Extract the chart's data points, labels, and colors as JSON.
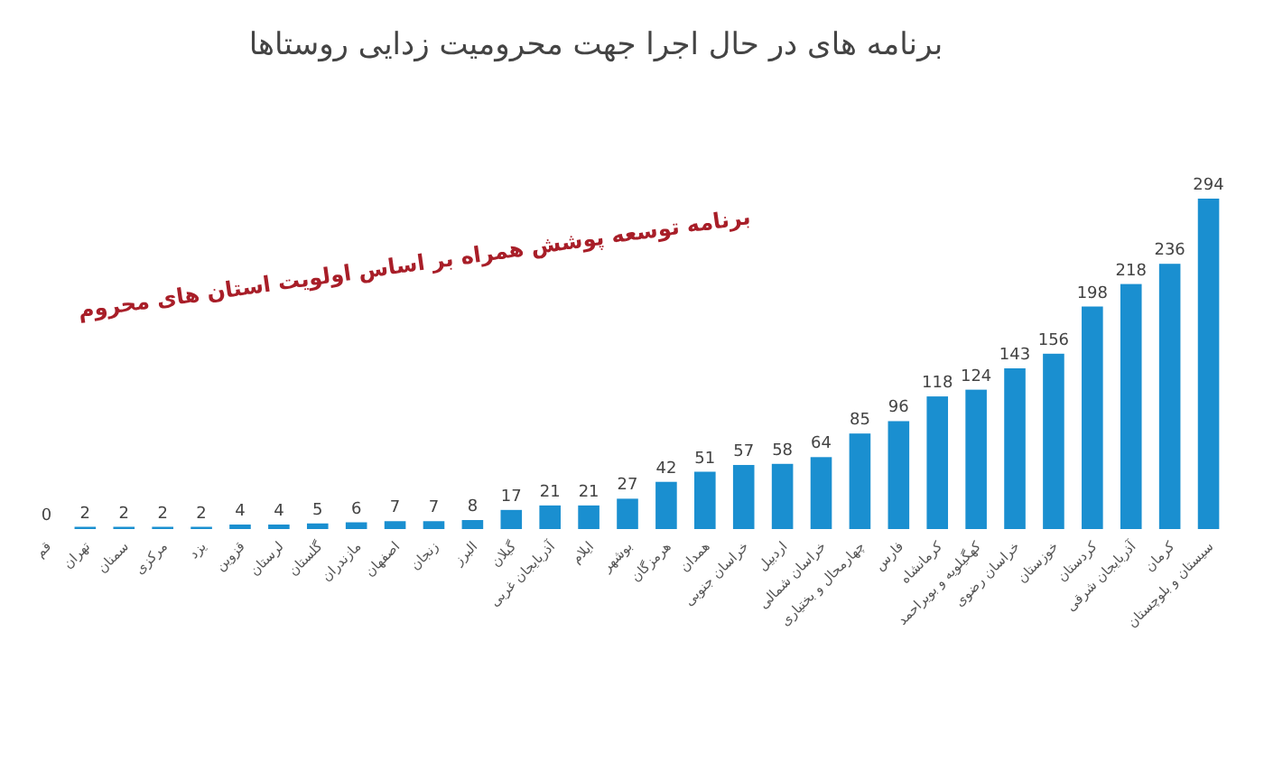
{
  "chart_data": {
    "type": "bar",
    "title": "برنامه های در حال اجرا جهت محرومیت زدایی روستاها",
    "subtitle": "برنامه توسعه پوشش همراه بر اساس اولویت استان های محروم",
    "categories": [
      "قم",
      "تهران",
      "سمنان",
      "مرکزی",
      "یزد",
      "قزوین",
      "لرستان",
      "گلستان",
      "مازندران",
      "اصفهان",
      "زنجان",
      "البرز",
      "گیلان",
      "آذربایجان غربی",
      "ایلام",
      "بوشهر",
      "هرمزگان",
      "همدان",
      "خراسان جنوبی",
      "اردبیل",
      "خراسان شمالی",
      "چهارمحال و بختیاری",
      "فارس",
      "کرمانشاه",
      "کهگیلویه و بویراحمد",
      "خراسان رضوی",
      "خوزستان",
      "کردستان",
      "آذربایجان شرقی",
      "کرمان",
      "سیستان و بلوچستان"
    ],
    "values": [
      0,
      2,
      2,
      2,
      2,
      4,
      4,
      5,
      6,
      7,
      7,
      8,
      17,
      21,
      21,
      27,
      42,
      51,
      57,
      58,
      64,
      85,
      96,
      118,
      124,
      143,
      156,
      198,
      218,
      236,
      294
    ],
    "color": "#1a8fd0",
    "data_labels": true
  }
}
